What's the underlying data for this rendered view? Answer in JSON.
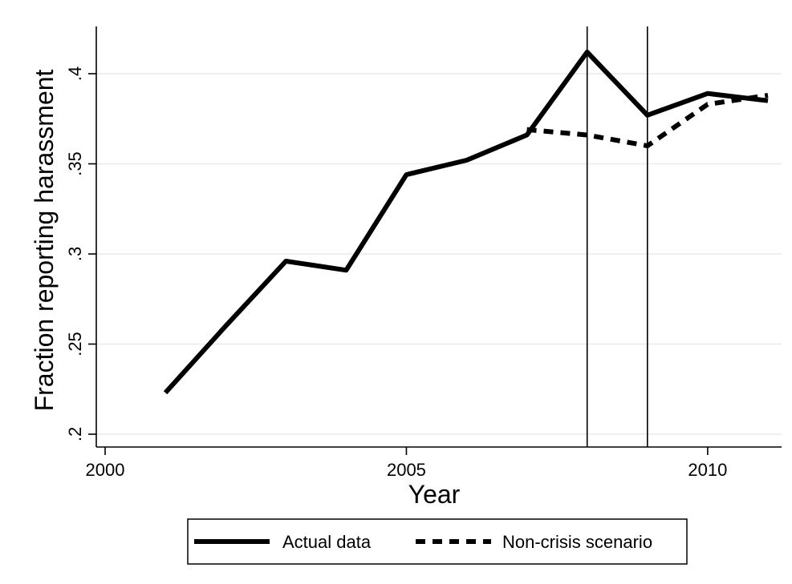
{
  "chart_data": {
    "type": "line",
    "title": "",
    "xlabel": "Year",
    "ylabel": "Fraction reporting harassment",
    "xlim": [
      2000,
      2011
    ],
    "ylim": [
      0.2,
      0.42
    ],
    "x_ticks": [
      {
        "value": 2000,
        "label": "2000"
      },
      {
        "value": 2005,
        "label": "2005"
      },
      {
        "value": 2010,
        "label": "2010"
      }
    ],
    "y_ticks": [
      {
        "value": 0.2,
        "label": ".2"
      },
      {
        "value": 0.25,
        "label": ".25"
      },
      {
        "value": 0.3,
        "label": ".3"
      },
      {
        "value": 0.35,
        "label": ".35"
      },
      {
        "value": 0.4,
        "label": ".4"
      }
    ],
    "grid": "horizontal",
    "vertical_markers": [
      2008,
      2009
    ],
    "legend": {
      "placement": "bottom",
      "entries": [
        {
          "label": "Actual data",
          "style": "solid"
        },
        {
          "label": "Non-crisis scenario",
          "style": "dashed"
        }
      ]
    },
    "series": [
      {
        "name": "Actual data",
        "style": "solid",
        "color": "#000000",
        "x": [
          2001,
          2002,
          2003,
          2004,
          2005,
          2006,
          2007,
          2008,
          2009,
          2010,
          2011
        ],
        "y": [
          0.223,
          0.26,
          0.296,
          0.291,
          0.344,
          0.352,
          0.366,
          0.412,
          0.377,
          0.389,
          0.385
        ]
      },
      {
        "name": "Non-crisis scenario",
        "style": "dashed",
        "color": "#000000",
        "x": [
          2007,
          2008,
          2009,
          2010,
          2011
        ],
        "y": [
          0.369,
          0.366,
          0.36,
          0.383,
          0.388
        ]
      }
    ]
  }
}
